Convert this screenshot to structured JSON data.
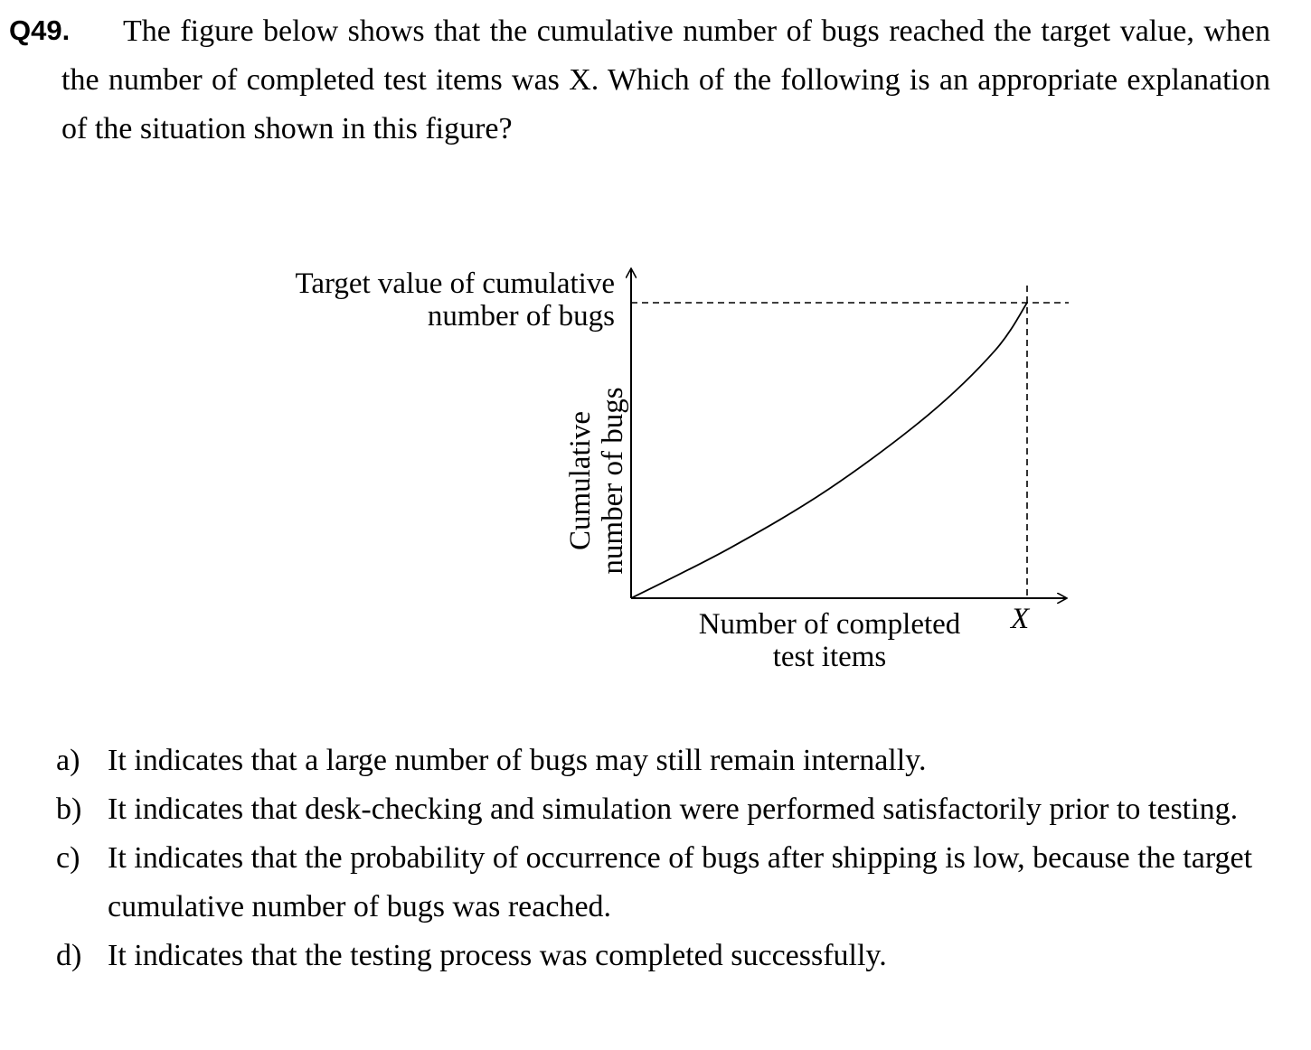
{
  "question": {
    "number": "Q49.",
    "text": "The figure below shows that the cumulative number of bugs reached the target value, when the number of completed test items was X. Which of the following is an appropriate explanation of the situation shown in this figure?"
  },
  "figure": {
    "target_label_line1": "Target value of cumulative",
    "target_label_line2": "number of bugs",
    "y_label_line1": "Cumulative",
    "y_label_line2": "number of bugs",
    "x_label_line1": "Number of completed",
    "x_label_line2": "test items",
    "x_mark": "X"
  },
  "chart_data": {
    "type": "line",
    "xlabel": "Number of completed test items",
    "ylabel": "Cumulative number of bugs",
    "x_tick_labels": [
      "X"
    ],
    "y_tick_labels": [
      "Target value of cumulative number of bugs"
    ],
    "grid": false,
    "legend": "none",
    "curve_shape": "convex increasing from origin, reaching the target value at X",
    "series": [
      {
        "values_normalized": [
          [
            0,
            0
          ],
          [
            0.25,
            0.17
          ],
          [
            0.5,
            0.37
          ],
          [
            0.75,
            0.62
          ],
          [
            0.92,
            0.84
          ],
          [
            1,
            1
          ]
        ]
      }
    ]
  },
  "options": [
    {
      "letter": "a)",
      "text": "It indicates that a large number of bugs may still remain internally."
    },
    {
      "letter": "b)",
      "text": "It indicates that desk-checking and simulation were performed satisfactorily prior to testing."
    },
    {
      "letter": "c)",
      "text": "It indicates that the probability of occurrence of bugs after shipping is low, because the target cumulative number of bugs was reached."
    },
    {
      "letter": "d)",
      "text": "It indicates that the testing process was completed successfully."
    }
  ]
}
